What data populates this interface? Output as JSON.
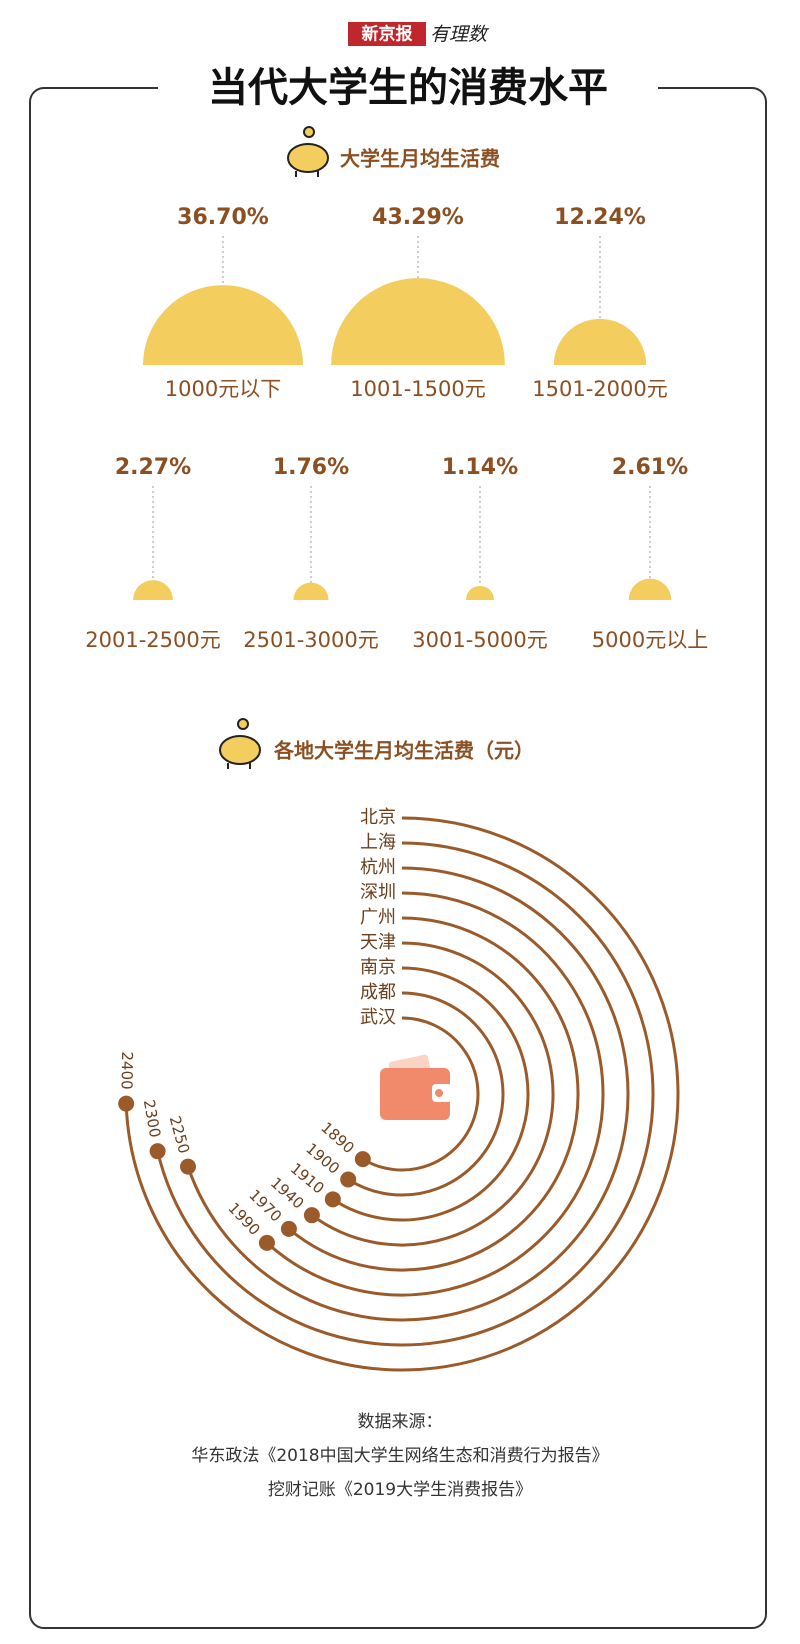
{
  "header": {
    "brand": "新京报",
    "column": "有理数",
    "title": "当代大学生的消费水平"
  },
  "chart_data": [
    {
      "type": "semicircle",
      "title": "大学生月均生活费",
      "categories": [
        "1000元以下",
        "1001-1500元",
        "1501-2000元",
        "2001-2500元",
        "2501-3000元",
        "3001-5000元",
        "5000元以上"
      ],
      "values": [
        36.7,
        43.29,
        12.24,
        2.27,
        1.76,
        1.14,
        2.61
      ],
      "value_labels": [
        "36.70%",
        "43.29%",
        "12.24%",
        "2.27%",
        "1.76%",
        "1.14%",
        "2.61%"
      ],
      "color": "#f3cd5e"
    },
    {
      "type": "radial",
      "title": "各地大学生月均生活费（元）",
      "categories": [
        "北京",
        "上海",
        "杭州",
        "深圳",
        "广州",
        "天津",
        "南京",
        "成都",
        "武汉"
      ],
      "values": [
        2400,
        2300,
        2250,
        1990,
        1970,
        1940,
        1910,
        1900,
        1890
      ],
      "color": "#9b5a2a"
    }
  ],
  "source": {
    "label": "数据来源：",
    "lines": [
      "华东政法《2018中国大学生网络生态和消费行为报告》",
      "挖财记账《2019大学生消费报告》"
    ]
  }
}
